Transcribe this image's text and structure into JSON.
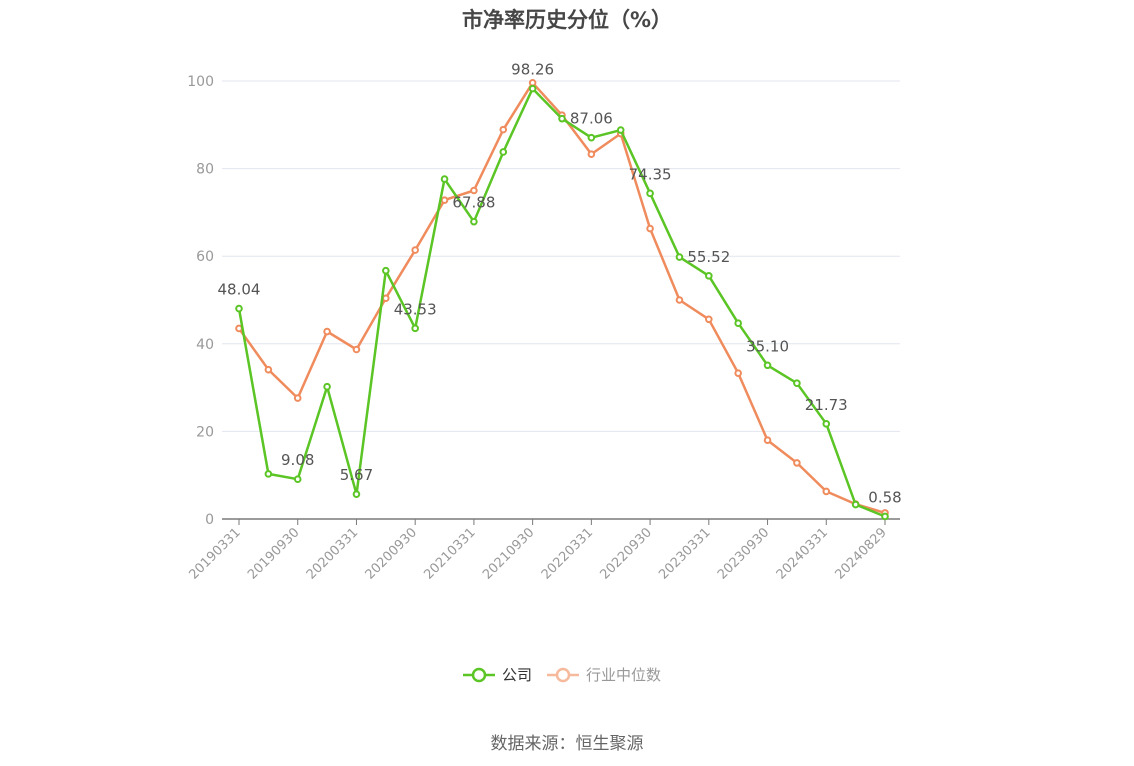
{
  "title": "市净率历史分位（%）",
  "source": "数据来源：恒生聚源",
  "colors": {
    "company": "#5ac524",
    "industry": "#ef8b5c",
    "industry_legend": "#f6b99b",
    "grid": "#e3e6ef",
    "axis": "#7a7a7a",
    "tick_text": "#999999",
    "label_text": "#555555"
  },
  "chart_data": {
    "type": "line",
    "title": "市净率历史分位（%）",
    "ylim": [
      0,
      100
    ],
    "yticks": [
      0,
      20,
      40,
      60,
      80,
      100
    ],
    "grid": true,
    "legend_position": "bottom",
    "xtick_labels": [
      "20190331",
      "20190930",
      "20200331",
      "20200930",
      "20210331",
      "20210930",
      "20220331",
      "20220930",
      "20230331",
      "20230930",
      "20240331",
      "20240829"
    ],
    "x": [
      "20190331",
      "20190630",
      "20190930",
      "20191231",
      "20200331",
      "20200630",
      "20200930",
      "20201231",
      "20210331",
      "20210630",
      "20210930",
      "20211231",
      "20220331",
      "20220630",
      "20220930",
      "20221231",
      "20230331",
      "20230630",
      "20230930",
      "20231231",
      "20240331",
      "20240630",
      "20240829"
    ],
    "series": [
      {
        "name": "公司",
        "values": [
          48.04,
          10.3,
          9.08,
          30.2,
          5.67,
          56.7,
          43.53,
          77.6,
          67.88,
          83.8,
          98.26,
          91.4,
          87.06,
          88.8,
          74.35,
          59.8,
          55.52,
          44.7,
          35.1,
          31.0,
          21.73,
          3.3,
          0.58
        ]
      },
      {
        "name": "行业中位数",
        "values": [
          43.5,
          34.1,
          27.6,
          42.8,
          38.7,
          50.4,
          61.4,
          72.8,
          75.0,
          88.9,
          99.6,
          92.2,
          83.3,
          88.0,
          66.3,
          50.0,
          45.6,
          33.3,
          18.0,
          12.8,
          6.3,
          3.4,
          1.4
        ]
      }
    ],
    "data_labels": [
      {
        "series": "公司",
        "index": 0,
        "text": "48.04"
      },
      {
        "series": "公司",
        "index": 2,
        "text": "9.08"
      },
      {
        "series": "公司",
        "index": 4,
        "text": "5.67"
      },
      {
        "series": "公司",
        "index": 6,
        "text": "43.53"
      },
      {
        "series": "公司",
        "index": 8,
        "text": "67.88"
      },
      {
        "series": "公司",
        "index": 10,
        "text": "98.26"
      },
      {
        "series": "公司",
        "index": 12,
        "text": "87.06"
      },
      {
        "series": "公司",
        "index": 14,
        "text": "74.35"
      },
      {
        "series": "公司",
        "index": 16,
        "text": "55.52"
      },
      {
        "series": "公司",
        "index": 18,
        "text": "35.10"
      },
      {
        "series": "公司",
        "index": 20,
        "text": "21.73"
      },
      {
        "series": "公司",
        "index": 22,
        "text": "0.58"
      }
    ]
  }
}
